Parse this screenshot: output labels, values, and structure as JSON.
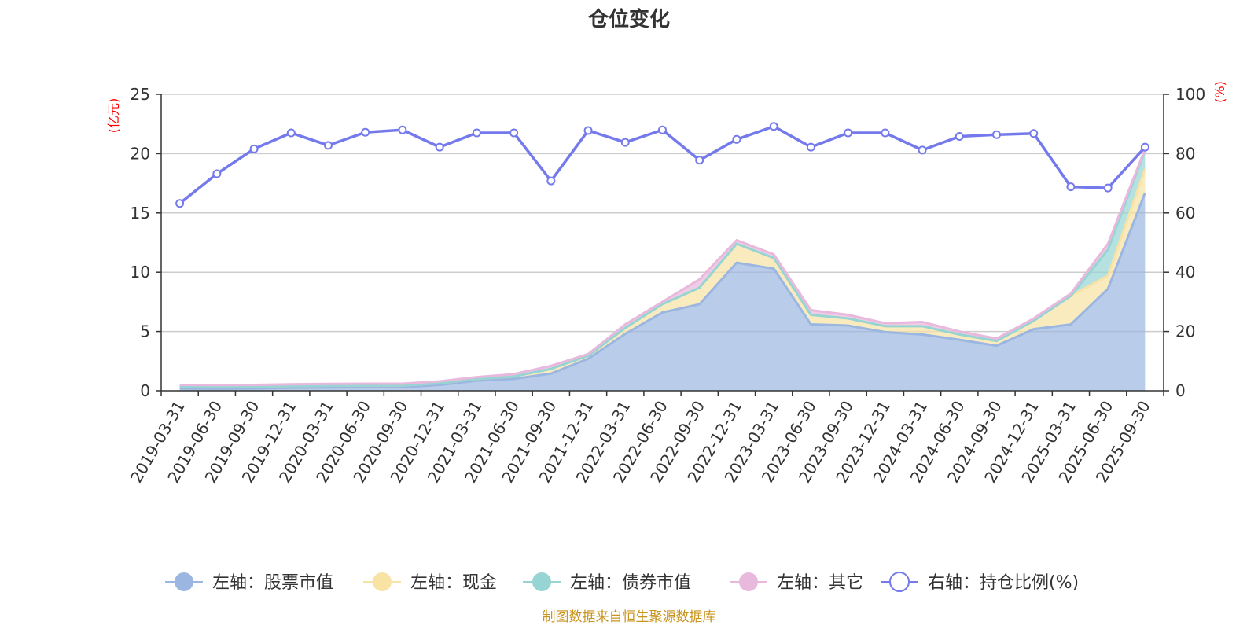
{
  "chart_data": {
    "type": "area",
    "title": "仓位变化",
    "left_unit": "(亿元)",
    "right_unit": "(%)",
    "ylim_left": [
      0,
      25
    ],
    "yticks_left": [
      0,
      5,
      10,
      15,
      20,
      25
    ],
    "ylim_right": [
      0,
      100
    ],
    "yticks_right": [
      0,
      20,
      40,
      60,
      80,
      100
    ],
    "grid": true,
    "legend_position": "bottom",
    "categories": [
      "2019-03-31",
      "2019-06-30",
      "2019-09-30",
      "2019-12-31",
      "2020-03-31",
      "2020-06-30",
      "2020-09-30",
      "2020-12-31",
      "2021-03-31",
      "2021-06-30",
      "2021-09-30",
      "2021-12-31",
      "2022-03-31",
      "2022-06-30",
      "2022-09-30",
      "2022-12-31",
      "2023-03-31",
      "2023-06-30",
      "2023-09-30",
      "2023-12-31",
      "2024-03-31",
      "2024-06-30",
      "2024-09-30",
      "2024-12-31",
      "2025-03-31",
      "2025-06-30",
      "2025-09-30"
    ],
    "series": [
      {
        "name": "左轴：股票市值",
        "axis": "left",
        "stack": true,
        "color": "#9bb6e0",
        "values": [
          0.2,
          0.18,
          0.2,
          0.25,
          0.28,
          0.3,
          0.3,
          0.5,
          0.85,
          1.0,
          1.45,
          2.7,
          4.8,
          6.6,
          7.3,
          10.8,
          10.3,
          5.6,
          5.5,
          4.95,
          4.75,
          4.3,
          3.8,
          5.2,
          5.6,
          8.6,
          16.7
        ]
      },
      {
        "name": "左轴：现金",
        "axis": "left",
        "stack": true,
        "color": "#f8e3a4",
        "values": [
          0.15,
          0.15,
          0.15,
          0.15,
          0.15,
          0.15,
          0.15,
          0.15,
          0.15,
          0.2,
          0.4,
          0.25,
          0.5,
          0.7,
          1.4,
          1.6,
          0.9,
          0.8,
          0.6,
          0.5,
          0.7,
          0.45,
          0.4,
          0.7,
          2.4,
          1.1,
          2.0
        ]
      },
      {
        "name": "左轴：债券市值",
        "axis": "left",
        "stack": true,
        "color": "#96d5d3",
        "values": [
          0,
          0,
          0,
          0,
          0,
          0,
          0,
          0,
          0,
          0,
          0,
          0,
          0,
          0,
          0,
          0,
          0,
          0,
          0,
          0,
          0,
          0,
          0,
          0,
          0,
          2.2,
          1.6
        ]
      },
      {
        "name": "左轴：其它",
        "axis": "left",
        "stack": true,
        "color": "#e9b8dd",
        "values": [
          0.15,
          0.15,
          0.15,
          0.15,
          0.15,
          0.15,
          0.15,
          0.15,
          0.15,
          0.2,
          0.25,
          0.15,
          0.3,
          0.2,
          0.7,
          0.3,
          0.3,
          0.4,
          0.3,
          0.25,
          0.35,
          0.25,
          0.2,
          0.2,
          0.2,
          0.5,
          0.1
        ]
      },
      {
        "name": "右轴：持仓比例(%)",
        "axis": "right",
        "type": "line",
        "color": "#7479ec",
        "values": [
          63.2,
          73.2,
          81.6,
          87.0,
          82.8,
          87.2,
          88.0,
          82.2,
          87.0,
          87.0,
          70.8,
          87.8,
          83.8,
          88.0,
          77.8,
          84.8,
          89.2,
          82.2,
          87.0,
          87.0,
          81.2,
          85.8,
          86.4,
          86.8,
          68.8,
          68.4,
          82.2
        ]
      }
    ]
  },
  "footer": {
    "source": "制图数据来自恒生聚源数据库"
  }
}
